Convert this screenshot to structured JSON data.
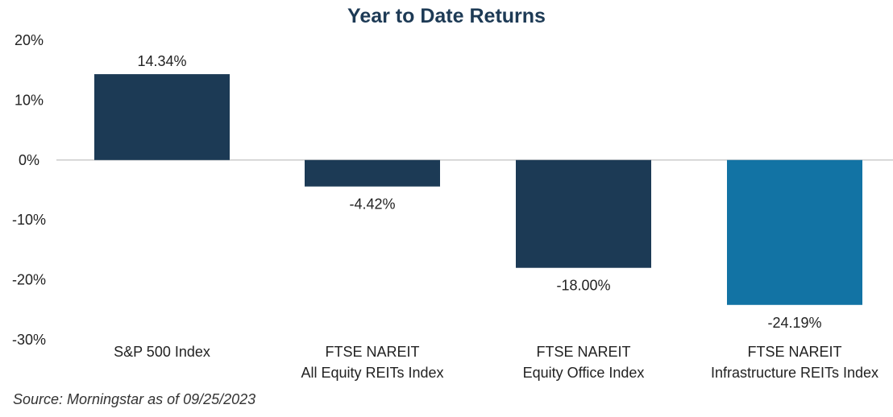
{
  "chart_data": {
    "type": "bar",
    "title": "Year to Date Returns",
    "xlabel": "",
    "ylabel": "",
    "ylim": [
      -30,
      20
    ],
    "yticks": [
      "20%",
      "10%",
      "0%",
      "-10%",
      "-20%",
      "-30%"
    ],
    "ytick_values": [
      20,
      10,
      0,
      -10,
      -20,
      -30
    ],
    "categories": [
      [
        "S&P 500 Index"
      ],
      [
        "FTSE NAREIT",
        "All Equity REITs Index"
      ],
      [
        "FTSE NAREIT",
        "Equity Office Index"
      ],
      [
        "FTSE NAREIT",
        "Infrastructure REITs Index"
      ]
    ],
    "values": [
      14.34,
      -4.42,
      -18.0,
      -24.19
    ],
    "data_labels": [
      "14.34%",
      "-4.42%",
      "-18.00%",
      "-24.19%"
    ],
    "colors": [
      "#1c3a55",
      "#1c3a55",
      "#1c3a55",
      "#1273a4"
    ],
    "grid": false,
    "zero_line_color": "#cccccc"
  },
  "source": "Source: Morningstar as of 09/25/2023"
}
